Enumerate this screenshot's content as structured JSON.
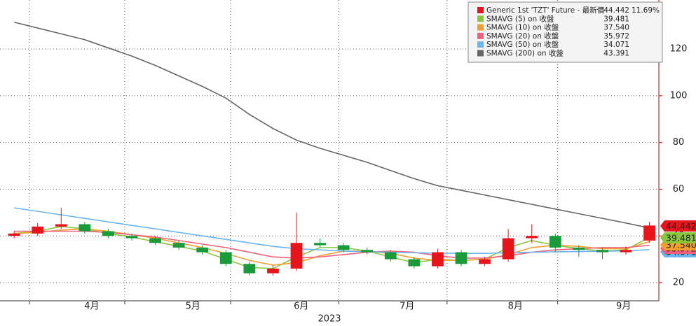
{
  "chart_data": {
    "type": "candlestick",
    "x": [
      0,
      1,
      2,
      3,
      4,
      5,
      6,
      7,
      8,
      9,
      10,
      11,
      12,
      13,
      14,
      15,
      16,
      17,
      18,
      19,
      20,
      21,
      22,
      23,
      24,
      25,
      26,
      27
    ],
    "xlim": [
      -0.6,
      27.4
    ],
    "xticks": [
      {
        "value": 3.3,
        "label": "4月"
      },
      {
        "value": 7.6,
        "label": "5月"
      },
      {
        "value": 12.2,
        "label": "6月"
      },
      {
        "value": 16.7,
        "label": "7月"
      },
      {
        "value": 21.3,
        "label": "8月"
      },
      {
        "value": 25.9,
        "label": "9月"
      }
    ],
    "xgrid": [
      0.65,
      4.7,
      9.2,
      13.8,
      18.4,
      23.1
    ],
    "xlabel": "2023",
    "ylim": [
      12.2,
      141
    ],
    "yticks": [
      20,
      40,
      60,
      80,
      100,
      120
    ],
    "grid": true,
    "series": [
      {
        "name": "Generic 1st 'TZT' Future - 最新價",
        "color": "#e8141c",
        "down_color": "#1a9a3a",
        "open": [
          40,
          41,
          44,
          45,
          42,
          40,
          39,
          37,
          35,
          33,
          28,
          24,
          26,
          37,
          36,
          34,
          33,
          30,
          27,
          33,
          28,
          30,
          39,
          40,
          35,
          34,
          33,
          38
        ],
        "high": [
          42,
          45.5,
          52,
          46,
          43,
          41,
          40,
          38,
          36,
          34,
          29,
          27.5,
          50,
          39,
          37,
          35,
          34,
          31,
          34.5,
          34,
          31,
          43,
          45,
          41,
          36,
          35,
          35.5,
          46
        ],
        "low": [
          39,
          40,
          43,
          41,
          39,
          38,
          36,
          34,
          32,
          27,
          23,
          23,
          25,
          35,
          33,
          32,
          29,
          26,
          26,
          27,
          27,
          29,
          37,
          33,
          31,
          30,
          32,
          37
        ],
        "close": [
          41,
          44,
          45,
          42,
          40,
          39,
          37,
          35,
          33,
          28,
          24,
          26,
          37,
          36,
          34,
          33,
          30,
          27,
          33,
          28,
          30,
          39,
          40,
          35,
          34,
          33,
          34,
          44.442
        ],
        "change": "11.69%"
      },
      {
        "name": "SMAVG (5)  on 收盤",
        "color": "#8cc63f",
        "values": [
          41,
          42,
          44,
          43,
          41,
          39.5,
          37.5,
          35.5,
          33.5,
          30,
          26.5,
          26,
          31,
          35,
          35,
          33.5,
          31,
          28.5,
          30,
          29.5,
          30,
          35,
          38,
          36,
          34.5,
          33.5,
          34,
          39.481
        ]
      },
      {
        "name": "SMAVG (10)  on 收盤",
        "color": "#f0a030",
        "value_label": "37.540",
        "values": [
          41,
          41.5,
          42.5,
          43,
          42,
          40.5,
          39,
          37,
          35,
          32.5,
          29.5,
          27.5,
          28.5,
          31.5,
          33.5,
          33.5,
          32.5,
          30.5,
          29.5,
          29.5,
          30,
          32,
          35,
          36,
          35.5,
          34.5,
          34.5,
          37.54
        ]
      },
      {
        "name": "SMAVG (20)  on 收盤",
        "color": "#f0607a",
        "values": [
          42,
          42,
          42,
          42,
          41.5,
          40.5,
          39.5,
          38,
          36.5,
          35,
          33,
          31,
          30.5,
          31,
          32,
          33,
          33.5,
          33,
          31.5,
          30.5,
          30.5,
          31.5,
          33,
          34,
          34.5,
          35,
          35,
          35.972
        ]
      },
      {
        "name": "SMAVG (50)  on 收盤",
        "color": "#6ab4f0",
        "values": [
          52,
          50.5,
          49,
          47.5,
          46,
          44.5,
          43,
          41.5,
          40,
          38.5,
          37,
          35.5,
          34.5,
          34,
          33.5,
          33.2,
          33,
          32.8,
          32.6,
          32.5,
          32.5,
          32.8,
          33,
          33.2,
          33.3,
          33.4,
          33.6,
          34.071
        ]
      },
      {
        "name": "SMAVG (200)  on 收盤",
        "color": "#666666",
        "values": [
          131.5,
          129,
          126.5,
          124,
          120.5,
          117,
          113,
          108.5,
          104,
          99,
          92,
          86,
          81,
          77.5,
          74.5,
          71.5,
          68,
          64.5,
          61.5,
          59.5,
          57.5,
          55.5,
          53.5,
          51.5,
          49.5,
          47.5,
          45.5,
          43.391
        ]
      }
    ]
  }
}
